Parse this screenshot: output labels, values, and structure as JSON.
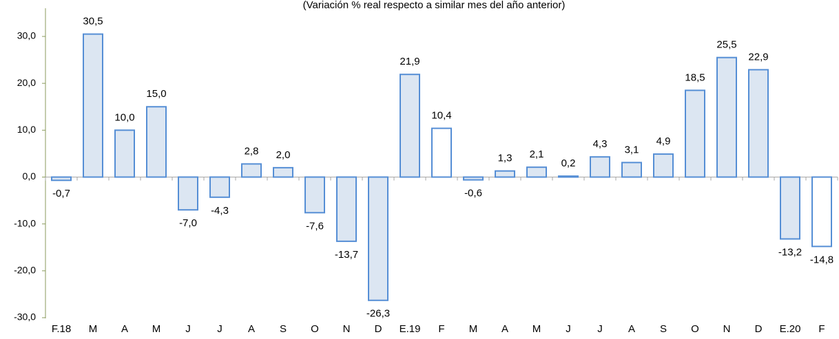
{
  "chart_data": {
    "type": "bar",
    "subtitle": "(Variación % real respecto a similar mes del año anterior)",
    "categories": [
      "F.18",
      "M",
      "A",
      "M",
      "J",
      "J",
      "A",
      "S",
      "O",
      "N",
      "D",
      "E.19",
      "F",
      "M",
      "A",
      "M",
      "J",
      "J",
      "A",
      "S",
      "O",
      "N",
      "D",
      "E.20",
      "F"
    ],
    "values": [
      -0.7,
      30.5,
      10.0,
      15.0,
      -7.0,
      -4.3,
      2.8,
      2.0,
      -7.6,
      -13.7,
      -26.3,
      21.9,
      10.4,
      -0.6,
      1.3,
      2.1,
      0.2,
      4.3,
      3.1,
      4.9,
      18.5,
      25.5,
      22.9,
      -13.2,
      -14.8
    ],
    "value_labels": [
      "-0,7",
      "30,5",
      "10,0",
      "15,0",
      "-7,0",
      "-4,3",
      "2,8",
      "2,0",
      "-7,6",
      "-13,7",
      "-26,3",
      "21,9",
      "10,4",
      "-0,6",
      "1,3",
      "2,1",
      "0,2",
      "4,3",
      "3,1",
      "4,9",
      "18,5",
      "25,5",
      "22,9",
      "-13,2",
      "-14,8"
    ],
    "colors": [
      "#dce6f2",
      "#dce6f2",
      "#dce6f2",
      "#dce6f2",
      "#dce6f2",
      "#dce6f2",
      "#dce6f2",
      "#dce6f2",
      "#dce6f2",
      "#dce6f2",
      "#dce6f2",
      "#dce6f2",
      "#ffffff",
      "#dce6f2",
      "#dce6f2",
      "#dce6f2",
      "#dce6f2",
      "#dce6f2",
      "#dce6f2",
      "#dce6f2",
      "#dce6f2",
      "#dce6f2",
      "#dce6f2",
      "#dce6f2",
      "#ffffff"
    ],
    "edge_color": "#558ed5",
    "ylim": [
      -30,
      30
    ],
    "yticks": [
      {
        "value": -30,
        "label": "-30,0"
      },
      {
        "value": -20,
        "label": "-20,0"
      },
      {
        "value": -10,
        "label": "-10,0"
      },
      {
        "value": 0,
        "label": "0,0"
      },
      {
        "value": 10,
        "label": "10,0"
      },
      {
        "value": 20,
        "label": "20,0"
      },
      {
        "value": 30,
        "label": "30,0"
      }
    ]
  }
}
